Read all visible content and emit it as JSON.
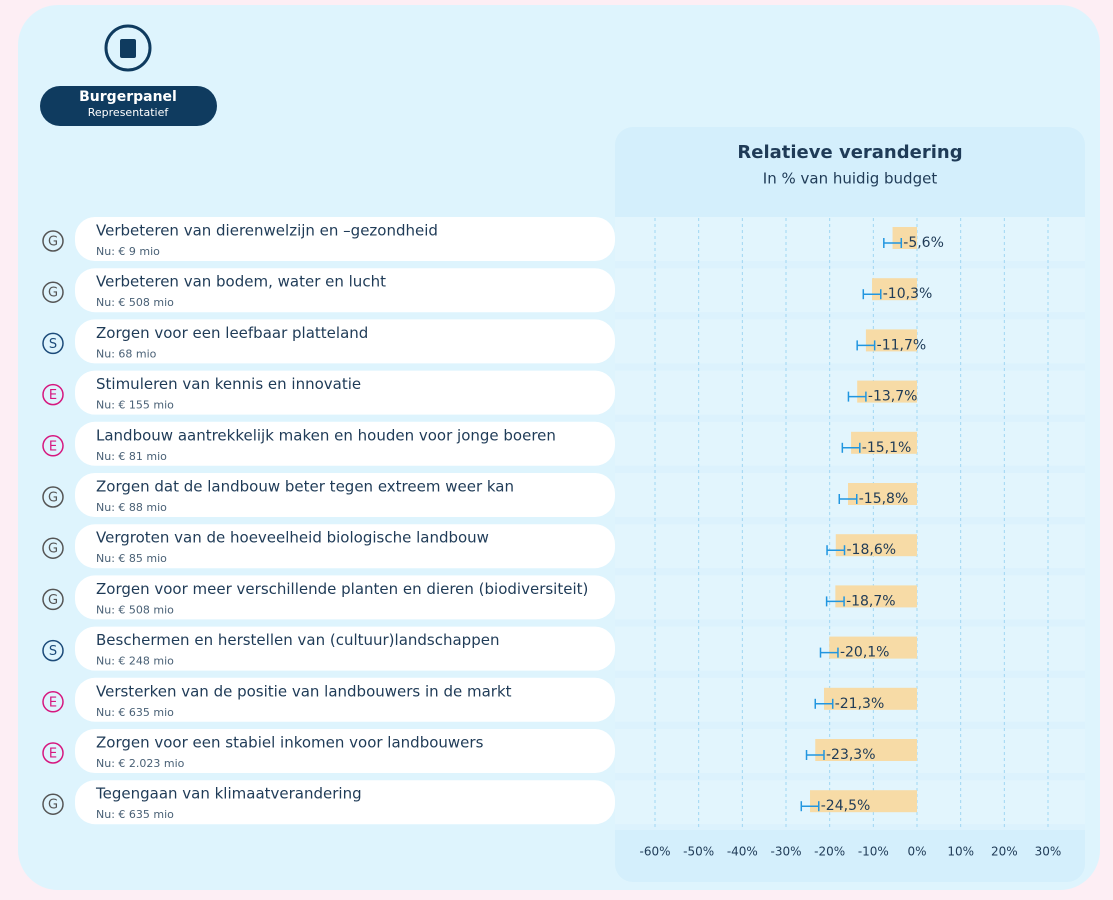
{
  "header": {
    "title": "Burgerpanel",
    "subtitle": "Representatief"
  },
  "chart_data": {
    "type": "bar",
    "orientation": "horizontal",
    "title": "Relatieve verandering",
    "subtitle": "In % van huidig budget",
    "categories": [
      "Verbeteren van dierenwelzijn en –gezondheid",
      "Verbeteren van bodem, water en lucht",
      "Zorgen voor een leefbaar platteland",
      "Stimuleren van kennis en innovatie",
      "Landbouw aantrekkelijk maken en houden voor jonge boeren",
      "Zorgen dat de landbouw beter tegen extreem weer kan",
      "Vergroten van de hoeveelheid biologische landbouw",
      "Zorgen voor meer verschillende planten en dieren (biodiversiteit)",
      "Beschermen en herstellen van (cultuur)landschappen",
      "Versterken van de positie van landbouwers in de markt",
      "Zorgen voor een stabiel inkomen voor landbouwers",
      "Tegengaan van klimaatverandering"
    ],
    "sublabels": [
      "Nu: € 9 mio",
      "Nu: € 508 mio",
      "Nu: 68 mio",
      "Nu: € 155 mio",
      "Nu: € 81 mio",
      "Nu: € 88 mio",
      "Nu: € 85 mio",
      "Nu: € 508 mio",
      "Nu: € 248 mio",
      "Nu: € 635 mio",
      "Nu: € 2.023 mio",
      "Nu: € 635 mio"
    ],
    "groups": [
      "G",
      "G",
      "S",
      "E",
      "E",
      "G",
      "G",
      "G",
      "S",
      "E",
      "E",
      "G"
    ],
    "group_colors": {
      "G": "#555555",
      "S": "#1c4b7a",
      "E": "#d6177f"
    },
    "values": [
      -5.6,
      -10.3,
      -11.7,
      -13.7,
      -15.1,
      -15.8,
      -18.6,
      -18.7,
      -20.1,
      -21.3,
      -23.3,
      -24.5
    ],
    "value_labels": [
      "-5,6%",
      "-10,3%",
      "-11,7%",
      "-13,7%",
      "-15,1%",
      "-15,8%",
      "-18,6%",
      "-18,7%",
      "-20,1%",
      "-21,3%",
      "-23,3%",
      "-24,5%"
    ],
    "errors": [
      2,
      2,
      2,
      2,
      2,
      2,
      2,
      2,
      2,
      2,
      2,
      2
    ],
    "color": "#f7dba6",
    "error_color": "#2196e0",
    "xlim": [
      -60,
      30
    ],
    "xticks": [
      {
        "value": -60,
        "label": "-60%"
      },
      {
        "value": -50,
        "label": "-50%"
      },
      {
        "value": -40,
        "label": "-40%"
      },
      {
        "value": -30,
        "label": "-30%"
      },
      {
        "value": -20,
        "label": "-20%"
      },
      {
        "value": -10,
        "label": "-10%"
      },
      {
        "value": 0,
        "label": "0%"
      },
      {
        "value": 10,
        "label": "10%"
      },
      {
        "value": 20,
        "label": "20%"
      },
      {
        "value": 30,
        "label": "30%"
      }
    ],
    "grid": true
  }
}
